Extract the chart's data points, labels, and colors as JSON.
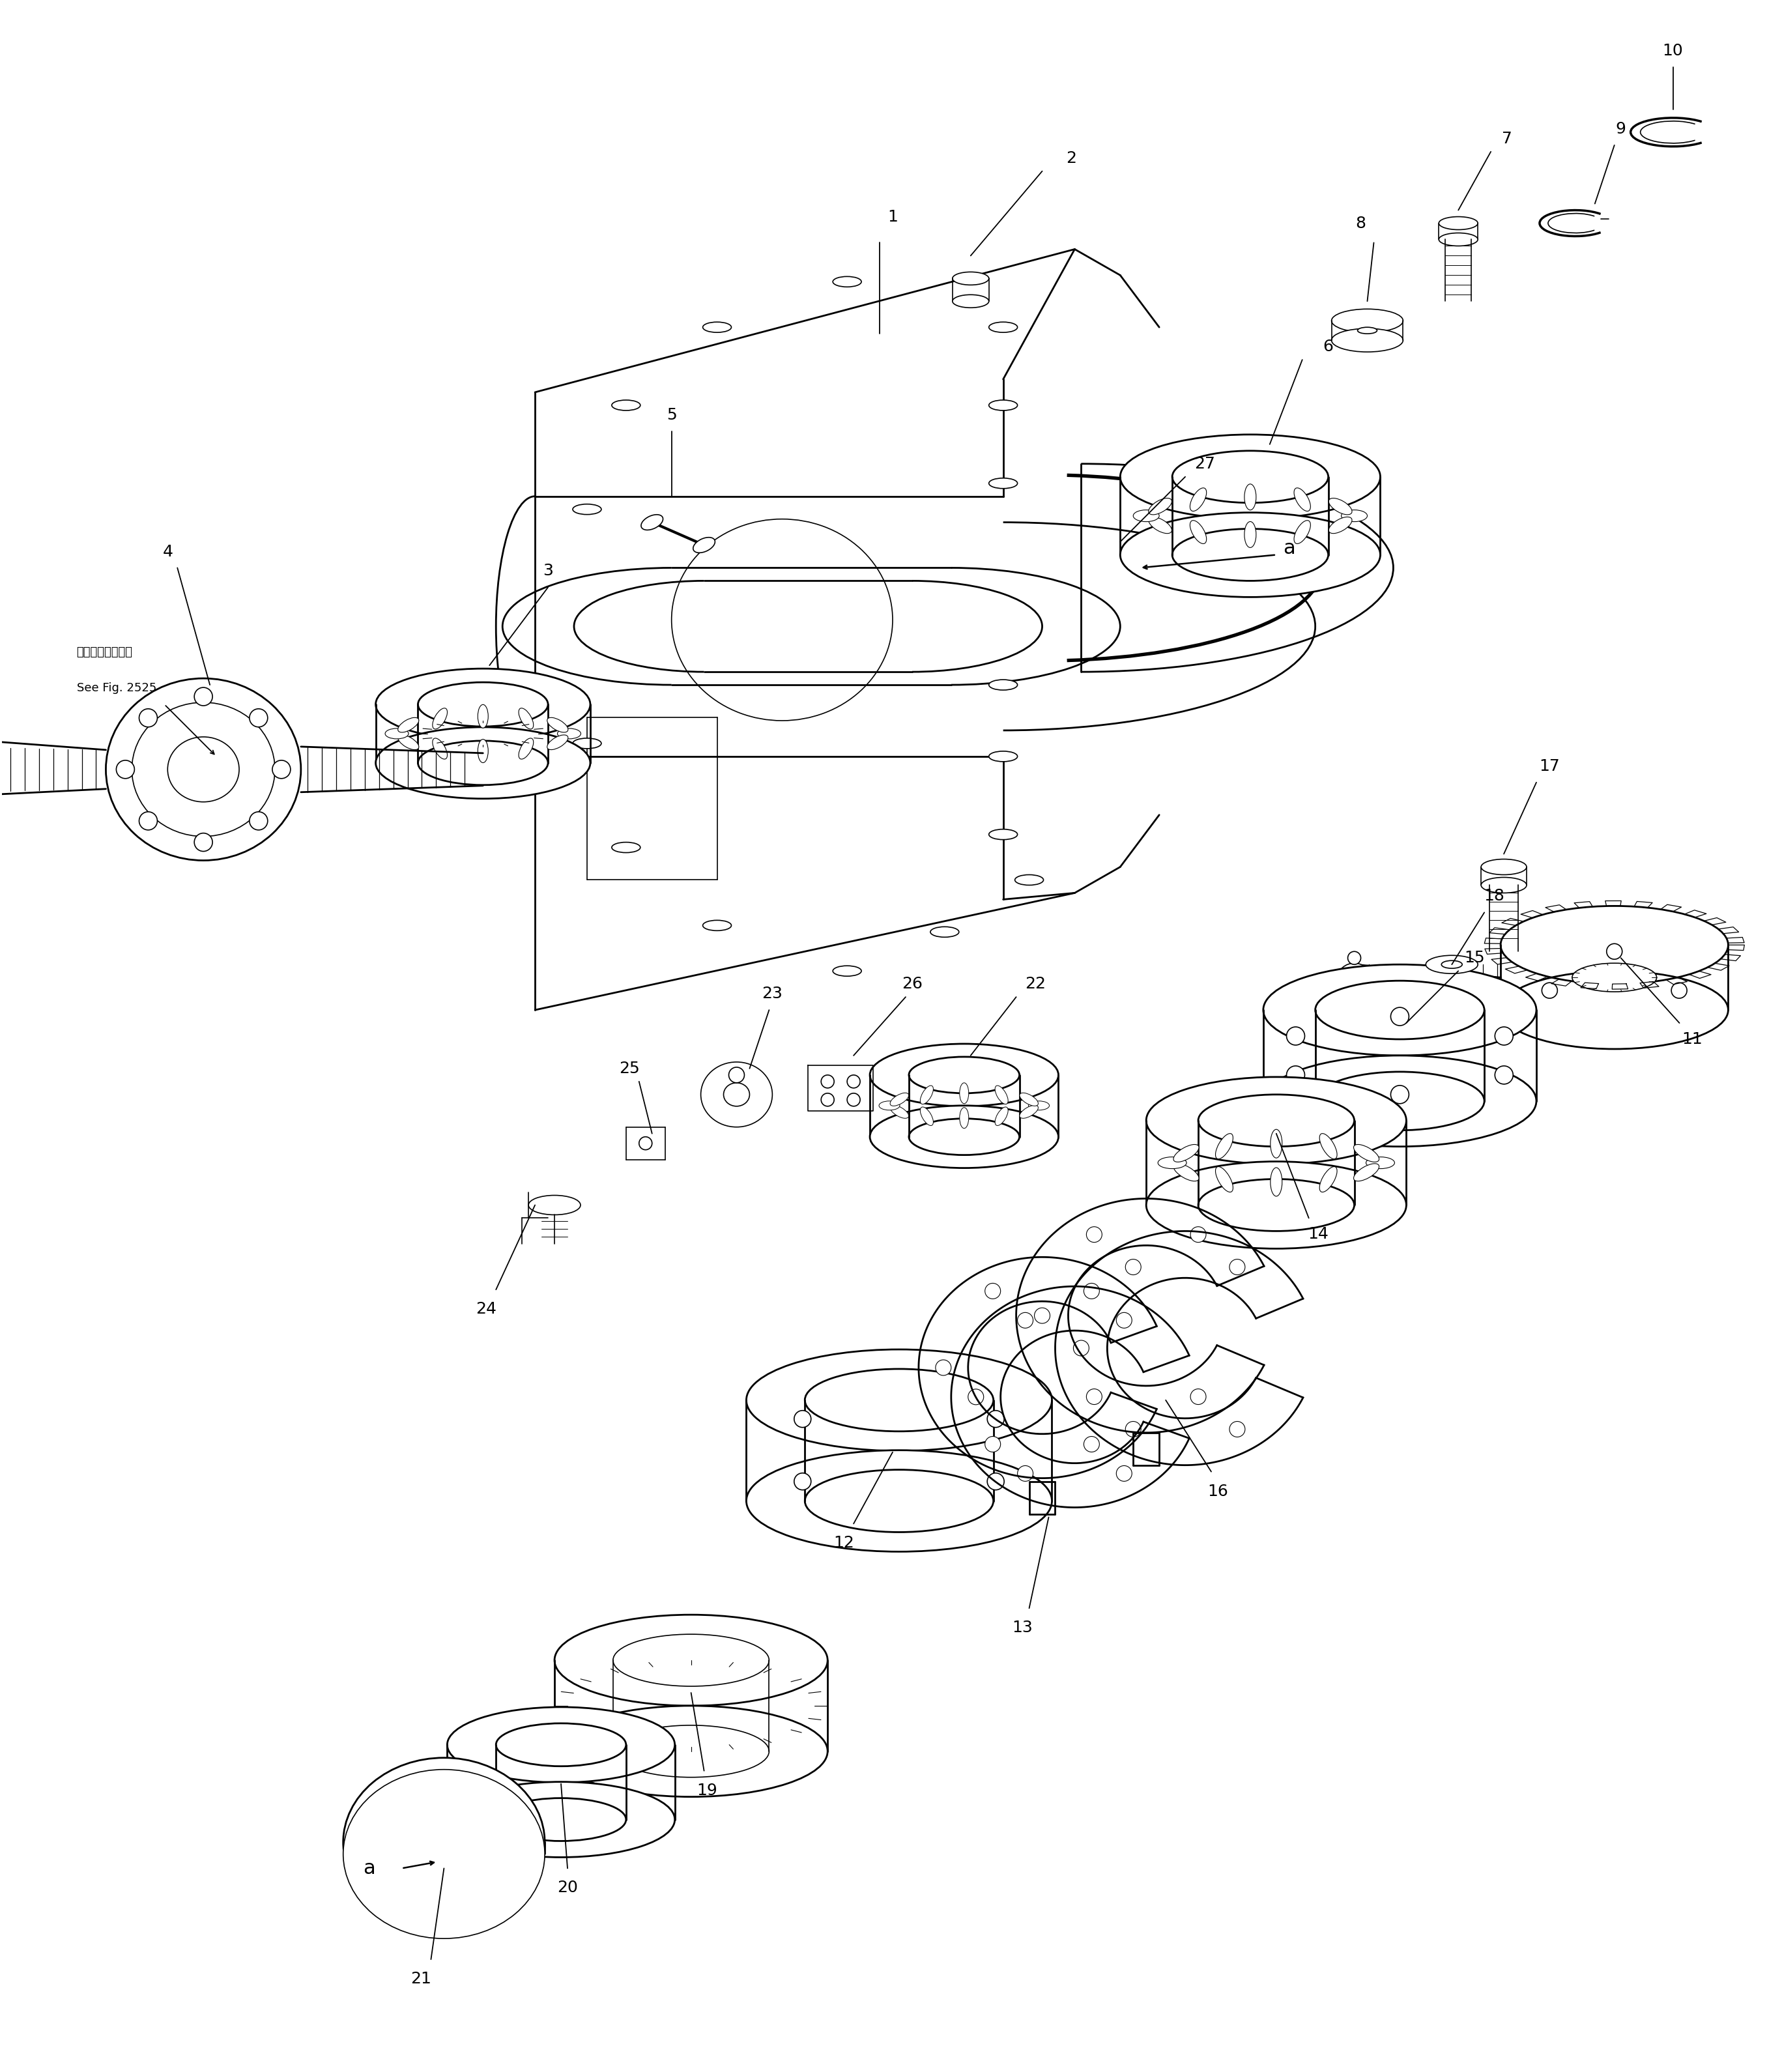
{
  "bg_color": "#ffffff",
  "line_color": "#000000",
  "fig_width": 27.35,
  "fig_height": 31.8,
  "lw_main": 2.0,
  "lw_thin": 1.2,
  "lw_thick": 2.8,
  "note_line1": "第２５２５図参照",
  "note_line2": "See Fig. 2525",
  "label_fontsize": 18
}
